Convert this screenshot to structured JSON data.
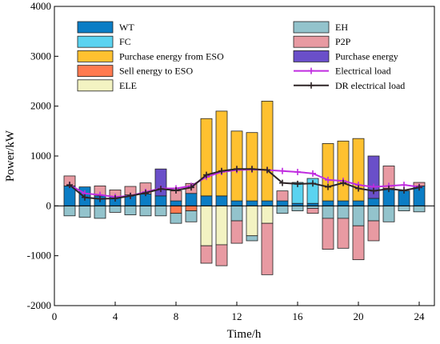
{
  "chart_data": {
    "type": "bar",
    "xlabel": "Time/h",
    "ylabel": "Power/kW",
    "xlim": [
      0,
      25
    ],
    "ylim": [
      -2000,
      4000
    ],
    "xticks": [
      0,
      4,
      8,
      12,
      16,
      20,
      24
    ],
    "yticks": [
      -2000,
      -1000,
      0,
      1000,
      2000,
      3000,
      4000
    ],
    "grid": false,
    "legend": "top (two columns inside plot)",
    "categories": [
      1,
      2,
      3,
      4,
      5,
      6,
      7,
      8,
      9,
      10,
      11,
      12,
      13,
      14,
      15,
      16,
      17,
      18,
      19,
      20,
      21,
      22,
      23,
      24
    ],
    "stacks": [
      {
        "name": "WT",
        "color": "#0b7dc5",
        "values": [
          400,
          380,
          200,
          180,
          220,
          240,
          200,
          100,
          250,
          200,
          200,
          100,
          100,
          100,
          100,
          50,
          50,
          100,
          100,
          100,
          150,
          350,
          300,
          400
        ]
      },
      {
        "name": "FC",
        "color": "#5bd3f0",
        "values": [
          0,
          0,
          0,
          0,
          0,
          0,
          0,
          0,
          0,
          0,
          0,
          0,
          0,
          0,
          0,
          420,
          500,
          0,
          0,
          0,
          0,
          0,
          0,
          0
        ]
      },
      {
        "name": "Purchase energy from ESO",
        "color": "#ffc130",
        "values": [
          0,
          0,
          0,
          0,
          0,
          0,
          0,
          0,
          0,
          1550,
          1700,
          1400,
          1370,
          2000,
          0,
          0,
          0,
          1150,
          1200,
          1250,
          0,
          0,
          0,
          0
        ]
      },
      {
        "name": "Sell energy to ESO",
        "color": "#ff7a50",
        "values": [
          0,
          0,
          0,
          0,
          0,
          0,
          0,
          -150,
          -100,
          0,
          0,
          0,
          0,
          0,
          0,
          0,
          0,
          0,
          0,
          0,
          0,
          0,
          0,
          0
        ]
      },
      {
        "name": "ELE",
        "color": "#f3f3c2",
        "values": [
          0,
          0,
          0,
          0,
          0,
          0,
          0,
          0,
          0,
          -800,
          -780,
          0,
          -600,
          -350,
          0,
          0,
          0,
          0,
          0,
          0,
          0,
          0,
          0,
          0
        ]
      },
      {
        "name": "EH",
        "color": "#93c3cc",
        "values": [
          -200,
          -230,
          -250,
          -130,
          -180,
          -200,
          -200,
          -200,
          -220,
          0,
          0,
          -300,
          -100,
          0,
          -150,
          -100,
          -50,
          -250,
          -250,
          -400,
          -300,
          -320,
          -100,
          -120
        ]
      },
      {
        "name": "P2P",
        "color": "#e89aa2",
        "values": [
          200,
          0,
          200,
          140,
          170,
          220,
          0,
          200,
          200,
          -350,
          -420,
          -450,
          0,
          -1030,
          200,
          0,
          -100,
          -620,
          -600,
          -680,
          -400,
          450,
          0,
          70
        ]
      },
      {
        "name": "Purchase energy",
        "color": "#6a4fc9",
        "values": [
          0,
          0,
          0,
          0,
          0,
          0,
          540,
          0,
          0,
          0,
          0,
          0,
          0,
          0,
          0,
          0,
          0,
          0,
          0,
          0,
          850,
          0,
          0,
          0
        ]
      }
    ],
    "series": [
      {
        "name": "Electrical load",
        "color": "#c02ce0",
        "x": [
          1,
          2,
          3,
          4,
          5,
          6,
          7,
          8,
          9,
          10,
          11,
          12,
          13,
          14,
          15,
          16,
          17,
          18,
          19,
          20,
          21,
          22,
          23,
          24
        ],
        "values": [
          420,
          250,
          220,
          180,
          200,
          280,
          350,
          350,
          400,
          580,
          680,
          720,
          730,
          720,
          700,
          680,
          650,
          520,
          500,
          420,
          380,
          400,
          420,
          380
        ]
      },
      {
        "name": "DR electrical load",
        "color": "#2e2426",
        "x": [
          1,
          2,
          3,
          4,
          5,
          6,
          7,
          8,
          9,
          10,
          11,
          12,
          13,
          14,
          15,
          16,
          17,
          18,
          19,
          20,
          21,
          22,
          23,
          24
        ],
        "values": [
          420,
          170,
          140,
          150,
          200,
          260,
          340,
          310,
          370,
          620,
          700,
          740,
          740,
          720,
          460,
          440,
          450,
          380,
          460,
          350,
          300,
          340,
          310,
          370
        ]
      }
    ]
  }
}
